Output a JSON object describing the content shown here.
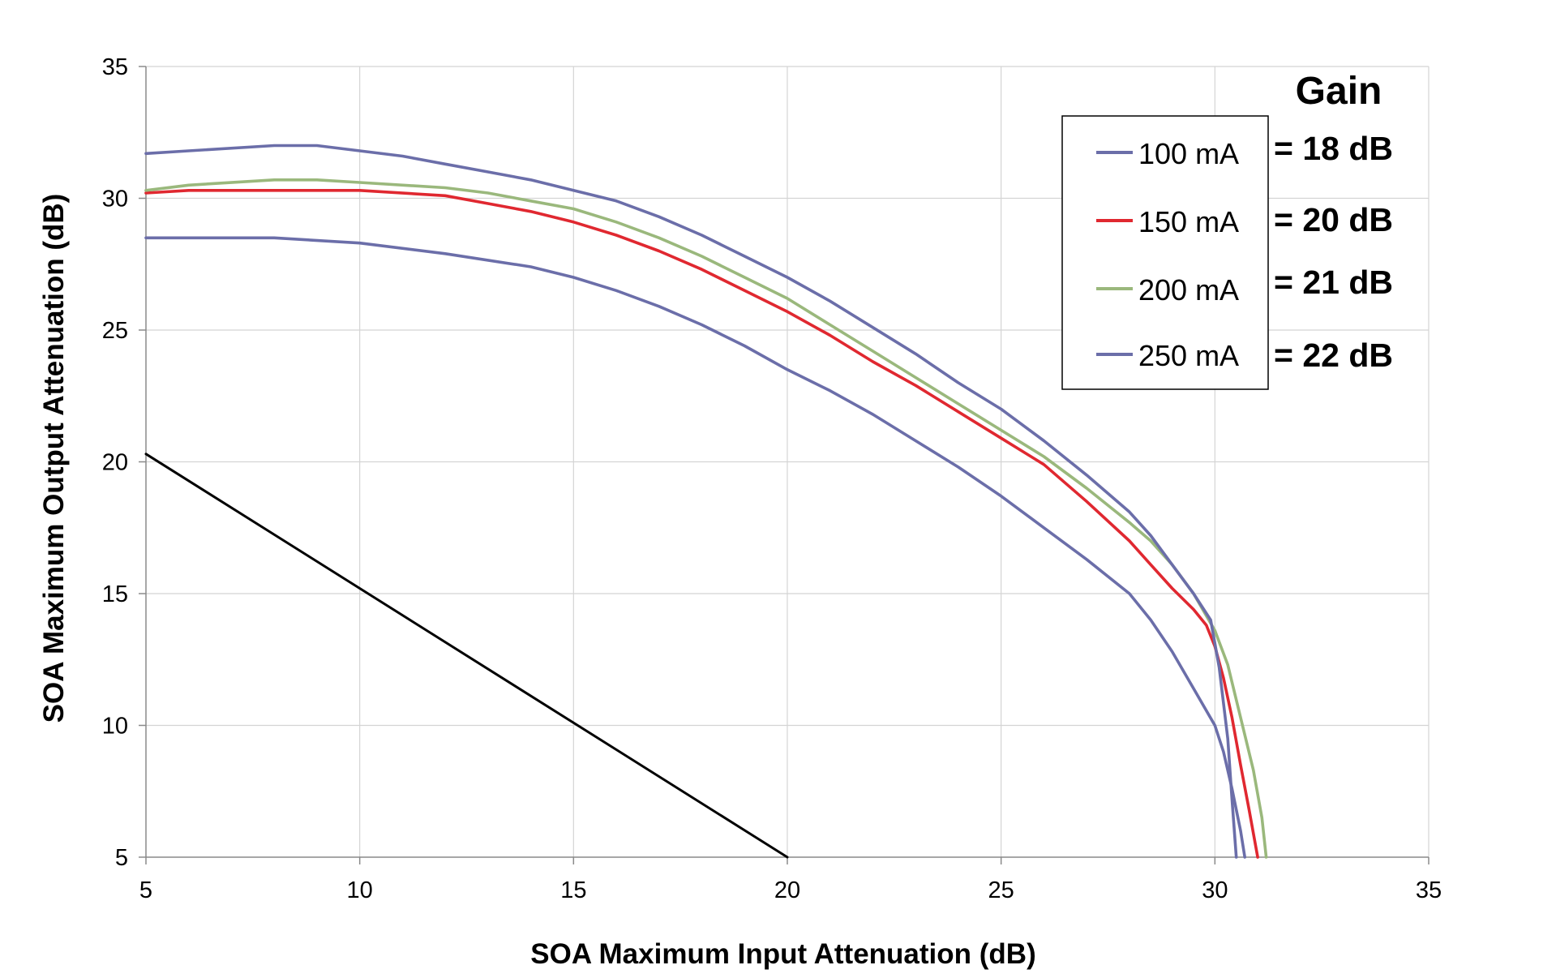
{
  "chart_data": {
    "type": "line",
    "title": "",
    "xlabel": "SOA Maximum Input Attenuation (dB)",
    "ylabel": "SOA Maximum Output Attenuation (dB)",
    "xlim": [
      5,
      35
    ],
    "ylim": [
      5,
      35
    ],
    "xticks": [
      5,
      10,
      15,
      20,
      25,
      30,
      35
    ],
    "yticks": [
      5,
      10,
      15,
      20,
      25,
      30,
      35
    ],
    "grid": true,
    "legend_position": "top-right",
    "gain_annotation": {
      "title": "Gain",
      "labels": [
        "= 18 dB",
        "= 20 dB",
        "= 21 dB",
        "= 22 dB"
      ]
    },
    "series": [
      {
        "name": "100 mA",
        "color": "#6b6ea9",
        "x": [
          5,
          6,
          8,
          10,
          12,
          14,
          15,
          16,
          17,
          18,
          19,
          20,
          21,
          22,
          23,
          24,
          25,
          26,
          27,
          28,
          28.5,
          29,
          29.5,
          30,
          30.2,
          30.4,
          30.6,
          30.7
        ],
        "y": [
          28.5,
          28.5,
          28.5,
          28.3,
          27.9,
          27.4,
          27.0,
          26.5,
          25.9,
          25.2,
          24.4,
          23.5,
          22.7,
          21.8,
          20.8,
          19.8,
          18.7,
          17.5,
          16.3,
          15.0,
          14.0,
          12.8,
          11.4,
          10.0,
          9.0,
          7.6,
          6.0,
          5.0
        ]
      },
      {
        "name": "150 mA",
        "color": "#e02830",
        "x": [
          5,
          6,
          8,
          10,
          12,
          13,
          14,
          15,
          16,
          17,
          18,
          19,
          20,
          21,
          22,
          23,
          24,
          25,
          26,
          27,
          28,
          28.5,
          29,
          29.5,
          29.8,
          30,
          30.2,
          30.4,
          30.6,
          30.8,
          31.0
        ],
        "y": [
          30.2,
          30.3,
          30.3,
          30.3,
          30.1,
          29.8,
          29.5,
          29.1,
          28.6,
          28.0,
          27.3,
          26.5,
          25.7,
          24.8,
          23.8,
          22.9,
          21.9,
          20.9,
          19.9,
          18.5,
          17.0,
          16.1,
          15.2,
          14.4,
          13.8,
          13.0,
          11.8,
          10.3,
          8.5,
          6.8,
          5.0
        ]
      },
      {
        "name": "200 mA",
        "color": "#9ab87c",
        "x": [
          5,
          6,
          8,
          9,
          10,
          12,
          13,
          14,
          15,
          16,
          17,
          18,
          19,
          20,
          21,
          22,
          23,
          24,
          25,
          26,
          27,
          28,
          28.5,
          29,
          29.5,
          30,
          30.3,
          30.6,
          30.9,
          31.1,
          31.2
        ],
        "y": [
          30.3,
          30.5,
          30.7,
          30.7,
          30.6,
          30.4,
          30.2,
          29.9,
          29.6,
          29.1,
          28.5,
          27.8,
          27.0,
          26.2,
          25.2,
          24.2,
          23.2,
          22.2,
          21.2,
          20.2,
          19.0,
          17.7,
          17.0,
          16.1,
          15.0,
          13.6,
          12.3,
          10.3,
          8.3,
          6.5,
          5.0
        ]
      },
      {
        "name": "250 mA",
        "color": "#6b6ea9",
        "x": [
          5,
          6,
          8,
          9,
          10,
          11,
          12,
          13,
          14,
          15,
          16,
          17,
          18,
          19,
          20,
          21,
          22,
          23,
          24,
          25,
          26,
          27,
          28,
          28.5,
          29,
          29.5,
          29.9,
          30.1,
          30.3,
          30.4,
          30.5
        ],
        "y": [
          31.7,
          31.8,
          32.0,
          32.0,
          31.8,
          31.6,
          31.3,
          31.0,
          30.7,
          30.3,
          29.9,
          29.3,
          28.6,
          27.8,
          27.0,
          26.1,
          25.1,
          24.1,
          23.0,
          22.0,
          20.8,
          19.5,
          18.1,
          17.2,
          16.1,
          15.0,
          14.0,
          12.2,
          9.5,
          7.2,
          5.0
        ]
      },
      {
        "name": "",
        "color": "#000000",
        "x": [
          5,
          20
        ],
        "y": [
          20.3,
          5.0
        ]
      }
    ]
  }
}
